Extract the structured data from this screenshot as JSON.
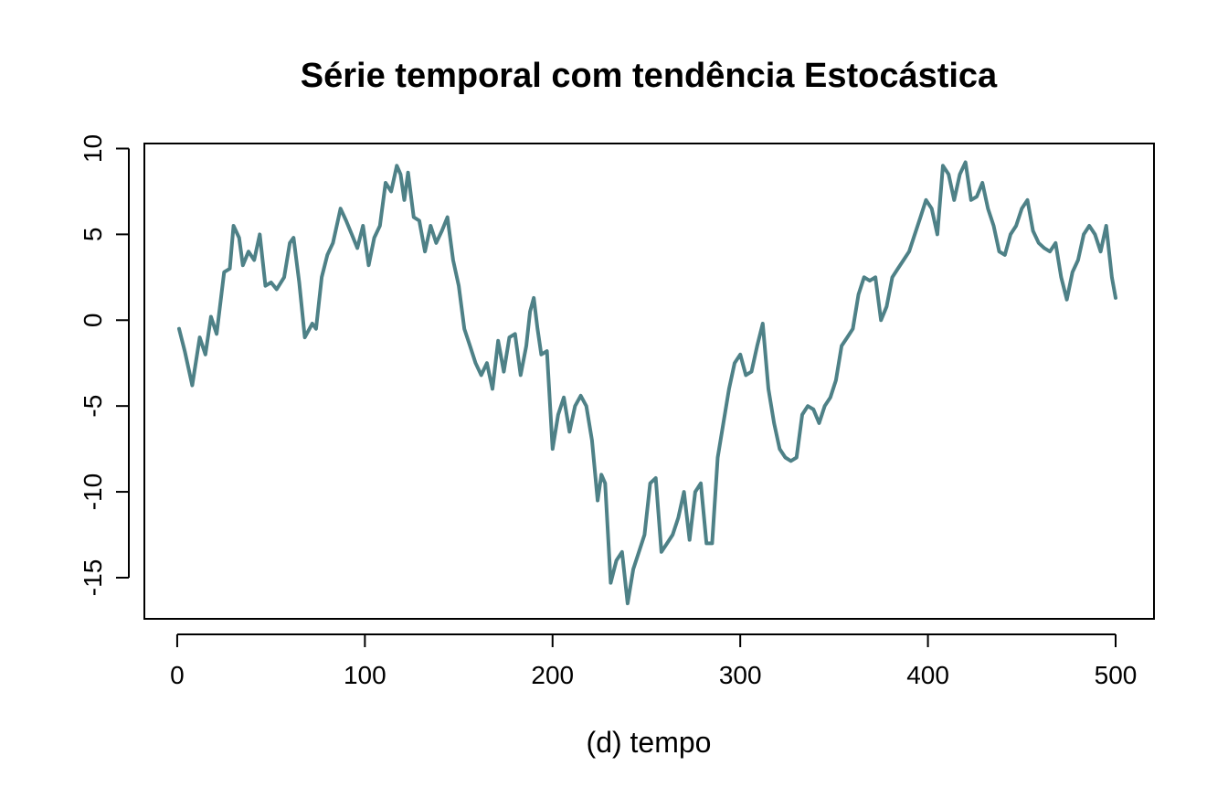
{
  "chart_data": {
    "type": "line",
    "title": "Série temporal com tendência Estocástica",
    "xlabel": "(d) tempo",
    "ylabel": "",
    "xlim": [
      1,
      500
    ],
    "ylim": [
      -16.6,
      9.6
    ],
    "xticks": [
      0,
      100,
      200,
      300,
      400,
      500
    ],
    "xtick_labels": [
      "0",
      "100",
      "200",
      "300",
      "400",
      "500"
    ],
    "yticks": [
      -15,
      -10,
      -5,
      0,
      5,
      10
    ],
    "ytick_labels": [
      "-15",
      "-10",
      "-5",
      "0",
      "5",
      "10"
    ],
    "grid": false,
    "legend": "none",
    "line_color": "#4e8187",
    "series": [
      {
        "x": [
          1,
          4,
          8,
          12,
          15,
          18,
          21,
          25,
          28,
          30,
          33,
          35,
          38,
          41,
          44,
          47,
          50,
          53,
          57,
          60,
          62,
          65,
          68,
          72,
          74,
          77,
          80,
          83,
          87,
          90,
          93,
          96,
          99,
          102,
          105,
          108,
          111,
          114,
          117,
          119,
          121,
          123,
          126,
          129,
          132,
          135,
          138,
          141,
          144,
          147,
          150,
          153,
          156,
          159,
          162,
          165,
          168,
          171,
          174,
          177,
          180,
          183,
          186,
          188,
          190,
          192,
          194,
          197,
          200,
          203,
          206,
          209,
          212,
          215,
          218,
          221,
          224,
          226,
          228,
          231,
          234,
          237,
          240,
          243,
          246,
          249,
          252,
          255,
          258,
          261,
          264,
          267,
          270,
          273,
          276,
          279,
          282,
          285,
          288,
          291,
          294,
          297,
          300,
          303,
          306,
          309,
          312,
          315,
          318,
          321,
          324,
          327,
          330,
          333,
          336,
          339,
          342,
          345,
          348,
          351,
          354,
          357,
          360,
          363,
          366,
          369,
          372,
          375,
          378,
          381,
          384,
          387,
          390,
          393,
          396,
          399,
          402,
          405,
          408,
          411,
          414,
          417,
          420,
          423,
          426,
          429,
          432,
          435,
          438,
          441,
          444,
          447,
          450,
          453,
          456,
          459,
          462,
          465,
          468,
          471,
          474,
          477,
          480,
          483,
          486,
          489,
          492,
          495,
          498,
          500
        ],
        "y": [
          -0.5,
          -1.8,
          -3.8,
          -1.0,
          -2.0,
          0.2,
          -0.8,
          2.8,
          3.0,
          5.5,
          4.8,
          3.2,
          4.0,
          3.5,
          5.0,
          2.0,
          2.2,
          1.8,
          2.5,
          4.5,
          4.8,
          2.2,
          -1.0,
          -0.2,
          -0.5,
          2.5,
          3.8,
          4.5,
          6.5,
          5.8,
          5.0,
          4.2,
          5.5,
          3.2,
          4.8,
          5.5,
          8.0,
          7.5,
          9.0,
          8.5,
          7.0,
          8.6,
          6.0,
          5.8,
          4.0,
          5.5,
          4.5,
          5.2,
          6.0,
          3.5,
          2.0,
          -0.5,
          -1.5,
          -2.5,
          -3.2,
          -2.5,
          -4.0,
          -1.2,
          -3.0,
          -1.0,
          -0.8,
          -3.2,
          -1.5,
          0.5,
          1.3,
          -0.5,
          -2.0,
          -1.8,
          -7.5,
          -5.5,
          -4.5,
          -6.5,
          -5.0,
          -4.4,
          -5.0,
          -7.0,
          -10.5,
          -9.0,
          -9.5,
          -15.3,
          -14.0,
          -13.5,
          -16.5,
          -14.5,
          -13.5,
          -12.5,
          -9.5,
          -9.2,
          -13.5,
          -13.0,
          -12.5,
          -11.5,
          -10.0,
          -12.8,
          -10.0,
          -9.5,
          -13.0,
          -13.0,
          -8.0,
          -6.0,
          -4.0,
          -2.5,
          -2.0,
          -3.2,
          -3.0,
          -1.5,
          -0.2,
          -4.0,
          -6.0,
          -7.5,
          -8.0,
          -8.2,
          -8.0,
          -5.5,
          -5.0,
          -5.2,
          -6.0,
          -5.0,
          -4.5,
          -3.5,
          -1.5,
          -1.0,
          -0.5,
          1.5,
          2.5,
          2.3,
          2.5,
          0.0,
          0.8,
          2.5,
          3.0,
          3.5,
          4.0,
          5.0,
          6.0,
          7.0,
          6.5,
          5.0,
          9.0,
          8.5,
          7.0,
          8.5,
          9.2,
          7.0,
          7.2,
          8.0,
          6.5,
          5.5,
          4.0,
          3.8,
          5.0,
          5.5,
          6.5,
          7.0,
          5.2,
          4.5,
          4.2,
          4.0,
          4.5,
          2.5,
          1.2,
          2.8,
          3.5,
          5.0,
          5.5,
          5.0,
          4.0,
          5.5,
          2.5,
          1.3
        ]
      }
    ]
  }
}
